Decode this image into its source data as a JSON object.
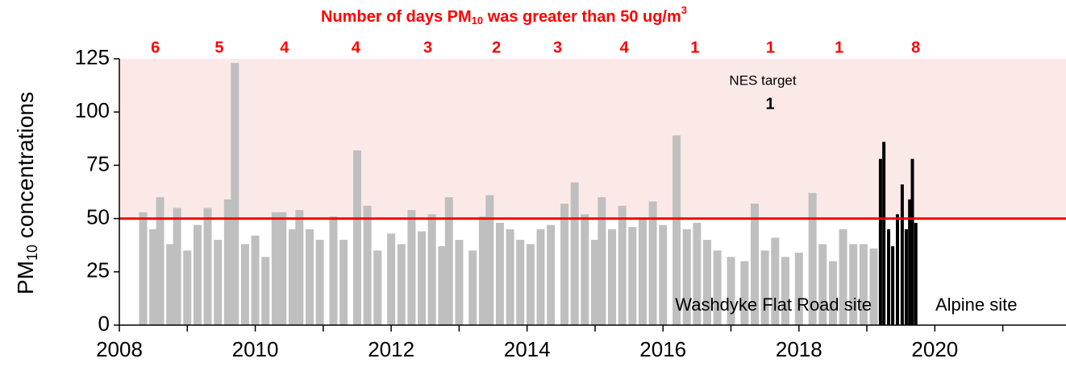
{
  "chart_data": {
    "type": "bar",
    "title": [
      "Number of days PM",
      "10",
      " was greater than 50 ug/m",
      "3"
    ],
    "ylabel": [
      "PM",
      "10",
      " concentrations"
    ],
    "xlim": [
      2008,
      2021.93
    ],
    "ylim": [
      0,
      125
    ],
    "xticks": [
      2008,
      2010,
      2012,
      2014,
      2016,
      2018,
      2020
    ],
    "xminor": [
      2009,
      2011,
      2013,
      2015,
      2017,
      2019,
      2021
    ],
    "yticks": [
      0,
      25,
      50,
      75,
      100,
      125
    ],
    "threshold": 50,
    "threshold_color": "#ff0000",
    "shade_color": "#fbe9e7",
    "target_label": "NES target",
    "target_value": 1,
    "exceedances": {
      "x": [
        2008.53,
        2009.47,
        2010.43,
        2011.48,
        2012.54,
        2013.55,
        2014.45,
        2015.43,
        2016.47,
        2017.58,
        2018.59,
        2019.72
      ],
      "counts": [
        6,
        5,
        4,
        4,
        3,
        2,
        3,
        4,
        1,
        1,
        1,
        8
      ],
      "color": "#ff0000"
    },
    "site_labels": [
      "Washdyke Flat Road site",
      "Alpine site"
    ],
    "series": [
      {
        "name": "Washdyke Flat Road site",
        "color": "#bfbfbf",
        "x": [
          2008.35,
          2008.5,
          2008.6,
          2008.75,
          2008.85,
          2009.0,
          2009.15,
          2009.3,
          2009.45,
          2009.6,
          2009.7,
          2009.85,
          2010.0,
          2010.15,
          2010.3,
          2010.4,
          2010.55,
          2010.65,
          2010.8,
          2010.95,
          2011.15,
          2011.3,
          2011.5,
          2011.65,
          2011.8,
          2012.0,
          2012.15,
          2012.3,
          2012.45,
          2012.6,
          2012.75,
          2012.85,
          2013.0,
          2013.2,
          2013.35,
          2013.45,
          2013.6,
          2013.75,
          2013.9,
          2014.05,
          2014.2,
          2014.35,
          2014.55,
          2014.7,
          2014.85,
          2015.0,
          2015.1,
          2015.25,
          2015.4,
          2015.55,
          2015.7,
          2015.85,
          2016.0,
          2016.2,
          2016.35,
          2016.5,
          2016.65,
          2016.8,
          2017.0,
          2017.2,
          2017.35,
          2017.5,
          2017.65,
          2017.8,
          2018.0,
          2018.2,
          2018.35,
          2018.5,
          2018.65,
          2018.8,
          2018.95,
          2019.1
        ],
        "values": [
          53,
          45,
          60,
          38,
          55,
          35,
          47,
          55,
          40,
          59,
          123,
          38,
          42,
          32,
          53,
          53,
          45,
          54,
          45,
          40,
          51,
          40,
          82,
          56,
          35,
          43,
          38,
          54,
          44,
          52,
          37,
          60,
          40,
          35,
          51,
          61,
          48,
          45,
          40,
          38,
          45,
          47,
          57,
          67,
          52,
          40,
          60,
          45,
          56,
          46,
          50,
          58,
          47,
          89,
          45,
          48,
          40,
          35,
          32,
          30,
          57,
          35,
          41,
          32,
          34,
          62,
          38,
          30,
          45,
          38,
          38,
          36
        ]
      },
      {
        "name": "Alpine site",
        "color": "#000000",
        "x": [
          2019.2,
          2019.25,
          2019.32,
          2019.38,
          2019.45,
          2019.52,
          2019.58,
          2019.63,
          2019.67,
          2019.72
        ],
        "values": [
          78,
          86,
          45,
          37,
          52,
          66,
          45,
          59,
          78,
          48
        ]
      }
    ]
  }
}
